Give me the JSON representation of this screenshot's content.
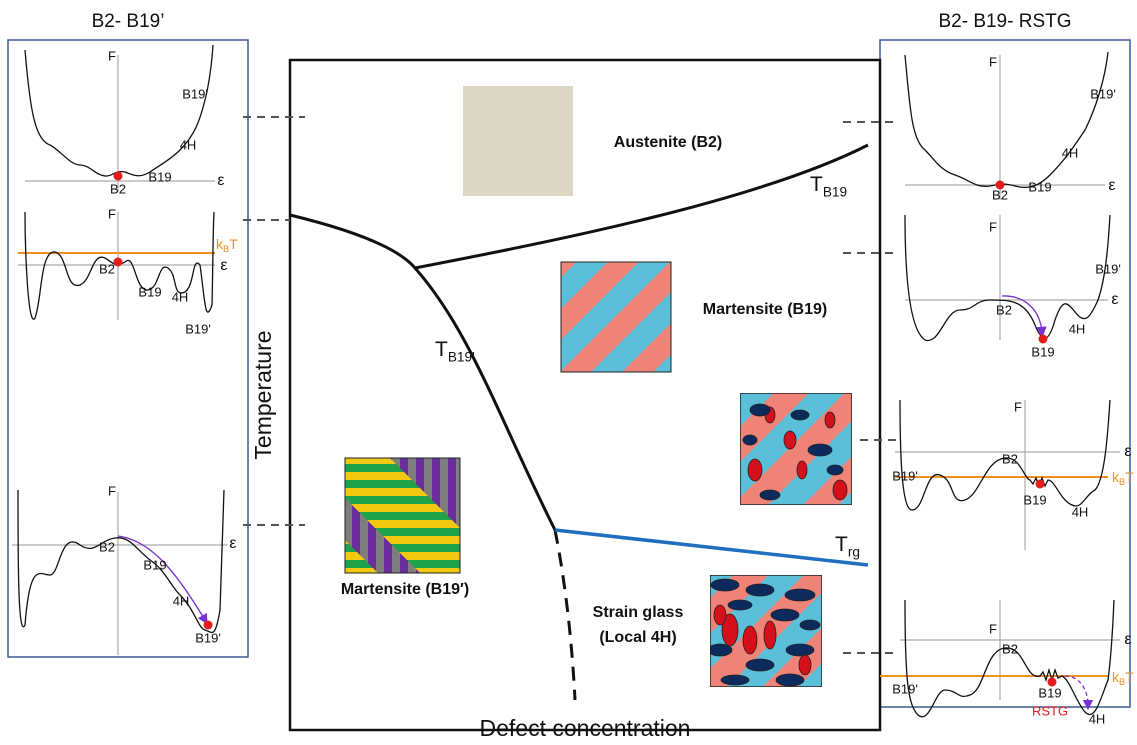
{
  "left_panel": {
    "title": "B2- B19’",
    "plots": [
      {
        "y_axis": "F",
        "x_axis": "ε",
        "labels": [
          "B2",
          "B19",
          "4H",
          "B19'"
        ]
      },
      {
        "y_axis": "F",
        "x_axis": "ε",
        "thermal": {
          "base": "k",
          "subscript": "B",
          "tail": "T"
        },
        "labels": [
          "B2",
          "B19",
          "4H",
          "B19'"
        ]
      },
      {
        "y_axis": "F",
        "x_axis": "ε",
        "labels": [
          "B2",
          "B19",
          "4H",
          "B19'"
        ]
      }
    ]
  },
  "main": {
    "y_axis": "Temperature",
    "x_axis": "Defect concentration",
    "phases": [
      "Austenite (B2)",
      "Martensite (B19)",
      "Martensite (B19′)",
      "Strain glass",
      "(Local 4H)"
    ],
    "boundaries": [
      {
        "symbol": "T",
        "subscript": "B19"
      },
      {
        "symbol": "T",
        "subscript": "B19'"
      },
      {
        "symbol": "T",
        "subscript": "rg"
      }
    ]
  },
  "right_panel": {
    "title": "B2- B19- RSTG",
    "plots": [
      {
        "y_axis": "F",
        "x_axis": "ε",
        "labels": [
          "B2",
          "B19",
          "4H",
          "B19'"
        ]
      },
      {
        "y_axis": "F",
        "x_axis": "ε",
        "labels": [
          "B2",
          "B19",
          "4H",
          "B19'"
        ]
      },
      {
        "y_axis": "F",
        "x_axis": "ε",
        "thermal": {
          "base": "k",
          "subscript": "B",
          "tail": "T"
        },
        "labels": [
          "B2",
          "B19",
          "4H",
          "B19'"
        ]
      },
      {
        "y_axis": "F",
        "x_axis": "ε",
        "thermal": {
          "base": "k",
          "subscript": "B",
          "tail": "T"
        },
        "labels": [
          "B2",
          "B19",
          "4H",
          "B19'",
          "RSTG"
        ]
      }
    ]
  }
}
